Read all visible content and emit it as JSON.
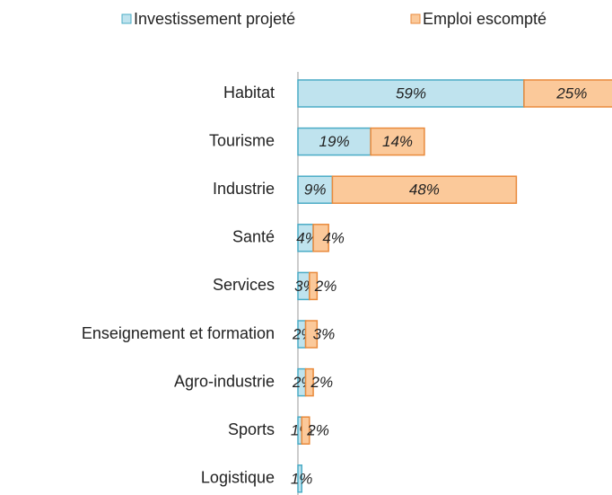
{
  "chart_data": {
    "type": "stacked-barh",
    "categories": [
      "Habitat",
      "Tourisme",
      "Industrie",
      "Santé",
      "Services",
      "Enseignement et formation",
      "Agro-industrie",
      "Sports",
      "Logistique"
    ],
    "series": [
      {
        "name": "Investissement projeté",
        "color": "#bfe3ee",
        "stroke": "#4bacc6",
        "values": [
          59,
          19,
          9,
          4,
          3,
          2,
          2,
          1,
          1
        ],
        "value_labels": [
          "59%",
          "19%",
          "9%",
          "4%",
          "3%",
          "2%",
          "2%",
          "1%",
          "1%"
        ]
      },
      {
        "name": "Emploi escompté",
        "color": "#fbc99a",
        "stroke": "#e98a3c",
        "values": [
          25,
          14,
          48,
          4,
          2,
          3,
          2,
          2,
          null
        ],
        "value_labels": [
          "25%",
          "14%",
          "48%",
          "4%",
          "2%",
          "3%",
          "2%",
          "2%",
          null
        ]
      }
    ],
    "legend": "top"
  }
}
